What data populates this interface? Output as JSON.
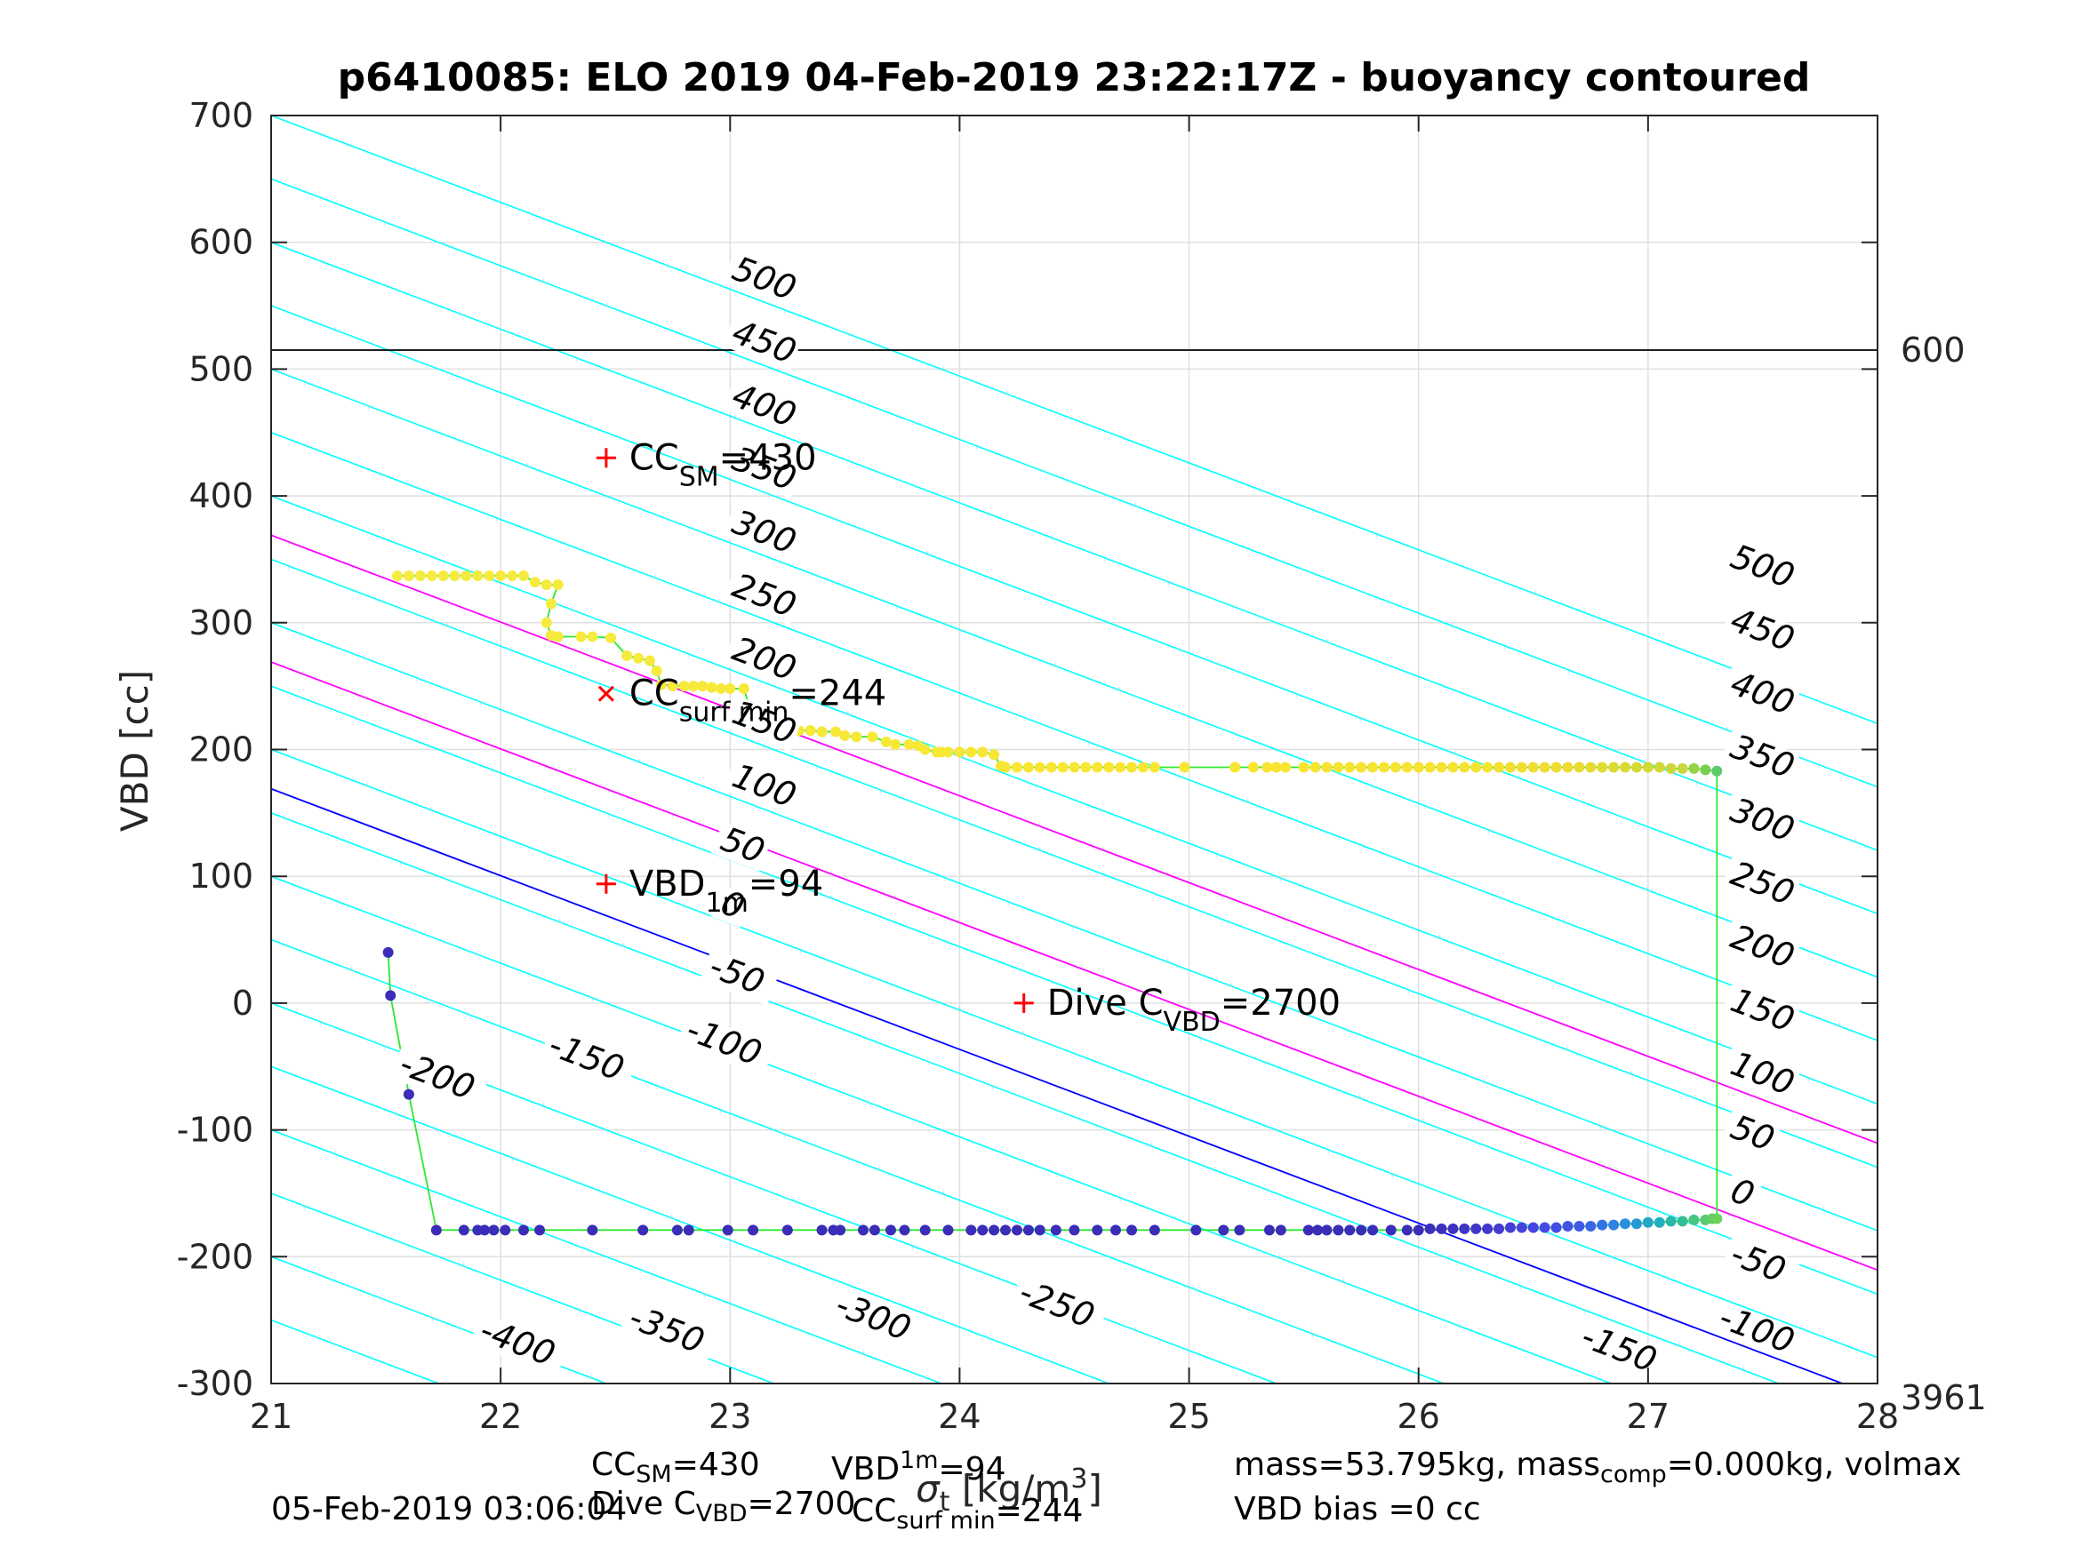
{
  "chart_data": {
    "type": "scatter",
    "title": "p6410085: ELO 2019 04-Feb-2019 23:22:17Z - buoyancy contoured",
    "xlabel": "σt [kg/m3]",
    "xlabel_parts": {
      "sym": "σ",
      "sub": "t",
      "unit_pre": " [kg/m",
      "sup": "3",
      "unit_post": "]"
    },
    "ylabel": "VBD [cc]",
    "xlim": [
      21,
      28
    ],
    "ylim": [
      -300,
      700
    ],
    "xticks": [
      "21",
      "22",
      "23",
      "24",
      "25",
      "26",
      "27",
      "28"
    ],
    "yticks": [
      "-300",
      "-200",
      "-100",
      "0",
      "100",
      "200",
      "300",
      "400",
      "500",
      "600",
      "700"
    ],
    "grid": true,
    "right_labels": {
      "depth_line_value": 600,
      "depth_line_vbd": 515,
      "bottom_value": "3961"
    },
    "contours": {
      "slope": -68.5,
      "levels": [
        -400,
        -350,
        -300,
        -250,
        -200,
        -150,
        -100,
        -50,
        0,
        50,
        100,
        150,
        200,
        250,
        300,
        350,
        400,
        450,
        500,
        550,
        600,
        650,
        700
      ],
      "color": "#00ffff",
      "labels_left": [
        {
          "text": "500",
          "x": 23.0,
          "y": 572
        },
        {
          "text": "450",
          "x": 23.0,
          "y": 522
        },
        {
          "text": "400",
          "x": 23.0,
          "y": 472
        },
        {
          "text": "350",
          "x": 23.0,
          "y": 422
        },
        {
          "text": "300",
          "x": 23.0,
          "y": 372
        },
        {
          "text": "250",
          "x": 23.0,
          "y": 322
        },
        {
          "text": "200",
          "x": 23.0,
          "y": 272
        },
        {
          "text": "150",
          "x": 23.0,
          "y": 222
        },
        {
          "text": "100",
          "x": 23.0,
          "y": 172
        },
        {
          "text": "50",
          "x": 22.95,
          "y": 122
        },
        {
          "text": "0",
          "x": 22.95,
          "y": 72
        },
        {
          "text": "-50",
          "x": 22.9,
          "y": 22
        },
        {
          "text": "-100",
          "x": 22.8,
          "y": -28
        },
        {
          "text": "-150",
          "x": 22.2,
          "y": -40
        },
        {
          "text": "-200",
          "x": 21.55,
          "y": -55
        },
        {
          "text": "-250",
          "x": 24.25,
          "y": -235
        },
        {
          "text": "-300",
          "x": 23.45,
          "y": -245
        },
        {
          "text": "-350",
          "x": 22.55,
          "y": -255
        },
        {
          "text": "-400",
          "x": 21.9,
          "y": -265
        }
      ],
      "labels_right": [
        {
          "text": "500",
          "x": 27.35,
          "y": 345
        },
        {
          "text": "450",
          "x": 27.35,
          "y": 295
        },
        {
          "text": "400",
          "x": 27.35,
          "y": 245
        },
        {
          "text": "350",
          "x": 27.35,
          "y": 195
        },
        {
          "text": "300",
          "x": 27.35,
          "y": 145
        },
        {
          "text": "250",
          "x": 27.35,
          "y": 95
        },
        {
          "text": "200",
          "x": 27.35,
          "y": 45
        },
        {
          "text": "150",
          "x": 27.35,
          "y": -5
        },
        {
          "text": "100",
          "x": 27.35,
          "y": -55
        },
        {
          "text": "50",
          "x": 27.35,
          "y": -105
        },
        {
          "text": "0",
          "x": 27.35,
          "y": -155
        },
        {
          "text": "-50",
          "x": 27.35,
          "y": -205
        },
        {
          "text": "-100",
          "x": 27.3,
          "y": -255
        },
        {
          "text": "-150",
          "x": 26.7,
          "y": -270
        }
      ]
    },
    "reference_lines": [
      {
        "name": "vbd-1m-line",
        "color": "#0000ff",
        "vbd_at_21": 169
      },
      {
        "name": "magenta-upper",
        "color": "#ff00ff",
        "vbd_at_21": 369
      },
      {
        "name": "magenta-lower",
        "color": "#ff00ff",
        "vbd_at_21": 269
      },
      {
        "name": "depth-600",
        "color": "#000000",
        "horizontal": 515
      }
    ],
    "markers": [
      {
        "symbol": "+",
        "x": 22.46,
        "y": 430,
        "label_main": "CC",
        "label_sub": "SM",
        "label_tail": "=430"
      },
      {
        "symbol": "x",
        "x": 22.46,
        "y": 244,
        "label_main": "CC",
        "label_sub": "surf min",
        "label_tail": "=244"
      },
      {
        "symbol": "+",
        "x": 22.46,
        "y": 94,
        "label_main": "VBD",
        "label_sub": "1m",
        "label_tail": "=94"
      },
      {
        "symbol": "+",
        "x": 24.28,
        "y": 0,
        "label_main": "Dive C",
        "label_sub": "VBD",
        "label_tail": "=2700"
      }
    ],
    "series": [
      {
        "name": "dive",
        "color_ramp": [
          "#3b2db8",
          "#4a40e0",
          "#3d5ce8",
          "#2a8ee0",
          "#1fb0c0",
          "#3cc48a",
          "#6ad05a"
        ],
        "points": [
          [
            21.51,
            40
          ],
          [
            21.52,
            6
          ],
          [
            21.6,
            -72
          ],
          [
            21.72,
            -179
          ],
          [
            21.84,
            -179
          ],
          [
            21.9,
            -179
          ],
          [
            21.93,
            -179
          ],
          [
            21.97,
            -179
          ],
          [
            22.02,
            -179
          ],
          [
            22.1,
            -179
          ],
          [
            22.17,
            -179
          ],
          [
            22.4,
            -179
          ],
          [
            22.62,
            -179
          ],
          [
            22.77,
            -179
          ],
          [
            22.82,
            -179
          ],
          [
            22.99,
            -179
          ],
          [
            23.1,
            -179
          ],
          [
            23.25,
            -179
          ],
          [
            23.4,
            -179
          ],
          [
            23.45,
            -179
          ],
          [
            23.48,
            -179
          ],
          [
            23.58,
            -179
          ],
          [
            23.63,
            -179
          ],
          [
            23.7,
            -179
          ],
          [
            23.76,
            -179
          ],
          [
            23.85,
            -179
          ],
          [
            23.95,
            -179
          ],
          [
            24.05,
            -179
          ],
          [
            24.1,
            -179
          ],
          [
            24.15,
            -179
          ],
          [
            24.2,
            -179
          ],
          [
            24.25,
            -179
          ],
          [
            24.3,
            -179
          ],
          [
            24.35,
            -179
          ],
          [
            24.42,
            -179
          ],
          [
            24.5,
            -179
          ],
          [
            24.6,
            -179
          ],
          [
            24.68,
            -179
          ],
          [
            24.75,
            -179
          ],
          [
            24.85,
            -179
          ],
          [
            25.03,
            -179
          ],
          [
            25.15,
            -179
          ],
          [
            25.22,
            -179
          ],
          [
            25.35,
            -179
          ],
          [
            25.4,
            -179
          ],
          [
            25.52,
            -179
          ],
          [
            25.56,
            -179
          ],
          [
            25.6,
            -179
          ],
          [
            25.65,
            -179
          ],
          [
            25.7,
            -179
          ],
          [
            25.75,
            -179
          ],
          [
            25.8,
            -179
          ],
          [
            25.88,
            -179
          ],
          [
            25.95,
            -179
          ],
          [
            26.0,
            -179
          ],
          [
            26.05,
            -178
          ],
          [
            26.1,
            -178
          ],
          [
            26.15,
            -178
          ],
          [
            26.2,
            -178
          ],
          [
            26.25,
            -178
          ],
          [
            26.3,
            -178
          ],
          [
            26.35,
            -178
          ],
          [
            26.4,
            -177
          ],
          [
            26.45,
            -177
          ],
          [
            26.5,
            -177
          ],
          [
            26.55,
            -177
          ],
          [
            26.6,
            -177
          ],
          [
            26.65,
            -176
          ],
          [
            26.7,
            -176
          ],
          [
            26.75,
            -176
          ],
          [
            26.8,
            -175
          ],
          [
            26.85,
            -175
          ],
          [
            26.9,
            -174
          ],
          [
            26.95,
            -174
          ],
          [
            27.0,
            -173
          ],
          [
            27.05,
            -173
          ],
          [
            27.1,
            -172
          ],
          [
            27.15,
            -172
          ],
          [
            27.2,
            -171
          ],
          [
            27.25,
            -171
          ],
          [
            27.28,
            -170
          ],
          [
            27.3,
            -170
          ]
        ]
      },
      {
        "name": "climb",
        "color_ramp": [
          "#3cc48a",
          "#7ed04e",
          "#c8d83a",
          "#f0dc30",
          "#f8e530",
          "#f5ec40"
        ],
        "points": [
          [
            27.3,
            183
          ],
          [
            27.25,
            184
          ],
          [
            27.2,
            185
          ],
          [
            27.15,
            185
          ],
          [
            27.1,
            185
          ],
          [
            27.05,
            186
          ],
          [
            27.0,
            186
          ],
          [
            26.95,
            186
          ],
          [
            26.9,
            186
          ],
          [
            26.85,
            186
          ],
          [
            26.8,
            186
          ],
          [
            26.75,
            186
          ],
          [
            26.7,
            186
          ],
          [
            26.65,
            186
          ],
          [
            26.6,
            186
          ],
          [
            26.55,
            186
          ],
          [
            26.5,
            186
          ],
          [
            26.45,
            186
          ],
          [
            26.4,
            186
          ],
          [
            26.35,
            186
          ],
          [
            26.3,
            186
          ],
          [
            26.25,
            186
          ],
          [
            26.2,
            186
          ],
          [
            26.15,
            186
          ],
          [
            26.1,
            186
          ],
          [
            26.05,
            186
          ],
          [
            26.0,
            186
          ],
          [
            25.95,
            186
          ],
          [
            25.9,
            186
          ],
          [
            25.85,
            186
          ],
          [
            25.8,
            186
          ],
          [
            25.75,
            186
          ],
          [
            25.7,
            186
          ],
          [
            25.65,
            186
          ],
          [
            25.6,
            186
          ],
          [
            25.55,
            186
          ],
          [
            25.5,
            186
          ],
          [
            25.42,
            186
          ],
          [
            25.38,
            186
          ],
          [
            25.34,
            186
          ],
          [
            25.28,
            186
          ],
          [
            25.2,
            186
          ],
          [
            24.98,
            186
          ],
          [
            24.85,
            186
          ],
          [
            24.8,
            186
          ],
          [
            24.75,
            186
          ],
          [
            24.7,
            186
          ],
          [
            24.65,
            186
          ],
          [
            24.6,
            186
          ],
          [
            24.55,
            186
          ],
          [
            24.5,
            186
          ],
          [
            24.45,
            186
          ],
          [
            24.4,
            186
          ],
          [
            24.35,
            186
          ],
          [
            24.3,
            186
          ],
          [
            24.25,
            186
          ],
          [
            24.2,
            186
          ],
          [
            24.18,
            187
          ],
          [
            24.15,
            196
          ],
          [
            24.1,
            198
          ],
          [
            24.05,
            198
          ],
          [
            24.0,
            198
          ],
          [
            23.95,
            198
          ],
          [
            23.92,
            198
          ],
          [
            23.9,
            198
          ],
          [
            23.85,
            200
          ],
          [
            23.82,
            203
          ],
          [
            23.78,
            204
          ],
          [
            23.72,
            204
          ],
          [
            23.68,
            206
          ],
          [
            23.62,
            210
          ],
          [
            23.55,
            210
          ],
          [
            23.5,
            211
          ],
          [
            23.46,
            214
          ],
          [
            23.4,
            214
          ],
          [
            23.35,
            215
          ],
          [
            23.3,
            215
          ],
          [
            23.25,
            215
          ],
          [
            23.2,
            215
          ],
          [
            23.15,
            215
          ],
          [
            23.12,
            215
          ],
          [
            23.1,
            224
          ],
          [
            23.06,
            248
          ],
          [
            23.0,
            248
          ],
          [
            22.96,
            248
          ],
          [
            22.92,
            249
          ],
          [
            22.88,
            250
          ],
          [
            22.84,
            250
          ],
          [
            22.8,
            250
          ],
          [
            22.75,
            250
          ],
          [
            22.7,
            251
          ],
          [
            22.68,
            262
          ],
          [
            22.65,
            270
          ],
          [
            22.6,
            272
          ],
          [
            22.55,
            274
          ],
          [
            22.48,
            288
          ],
          [
            22.4,
            289
          ],
          [
            22.35,
            289
          ],
          [
            22.25,
            289
          ],
          [
            22.22,
            290
          ],
          [
            22.2,
            300
          ],
          [
            22.22,
            315
          ],
          [
            22.25,
            330
          ],
          [
            22.2,
            330
          ],
          [
            22.15,
            332
          ],
          [
            22.1,
            337
          ],
          [
            22.05,
            337
          ],
          [
            22.0,
            337
          ],
          [
            21.95,
            337
          ],
          [
            21.9,
            337
          ],
          [
            21.85,
            337
          ],
          [
            21.8,
            337
          ],
          [
            21.75,
            337
          ],
          [
            21.7,
            337
          ],
          [
            21.65,
            337
          ],
          [
            21.6,
            337
          ],
          [
            21.55,
            337
          ]
        ]
      }
    ]
  },
  "footer": {
    "line1_a_main": "CC",
    "line1_a_sub": "SM",
    "line1_a_tail": "=430",
    "line1_b_main": "VBD",
    "line1_b_sub": "1m",
    "line1_b_tail": "=94",
    "line2_a_main": "Dive C",
    "line2_a_sub": "VBD",
    "line2_a_tail": "=2700",
    "line2_b_main": "CC",
    "line2_b_sub": "surf min",
    "line2_b_tail": "=244",
    "timestamp": "05-Feb-2019 03:06:04",
    "mass_main": "mass=53.795kg, mass",
    "mass_sub": "comp",
    "mass_tail": "=0.000kg, volmax",
    "vbd_bias": "VBD bias =0 cc"
  }
}
